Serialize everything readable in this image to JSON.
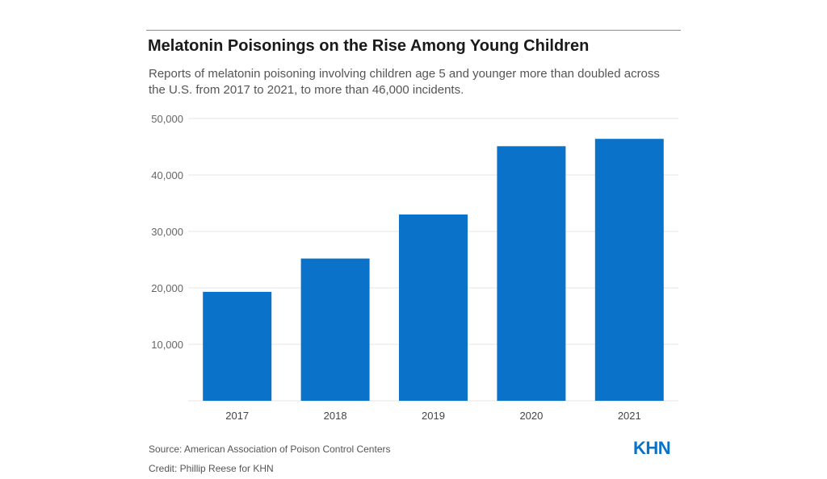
{
  "title": "Melatonin Poisonings on the Rise Among Young Children",
  "subtitle": "Reports of melatonin poisoning involving children age 5 and younger more than doubled across the U.S. from 2017 to 2021, to more than 46,000 incidents.",
  "source": "Source: American Association of Poison Control Centers",
  "credit": "Credit: Phillip Reese for KHN",
  "logo_text": "KHN",
  "colors": {
    "bar": "#0a72c8",
    "grid": "#e6e6e6",
    "axis_text": "#666666",
    "logo": "#0a72c8"
  },
  "chart_data": {
    "type": "bar",
    "categories": [
      "2017",
      "2018",
      "2019",
      "2020",
      "2021"
    ],
    "values": [
      19300,
      25200,
      33000,
      45100,
      46400
    ],
    "title": "",
    "xlabel": "",
    "ylabel": "",
    "ylim": [
      0,
      50000
    ],
    "yticks": [
      10000,
      20000,
      30000,
      40000,
      50000
    ],
    "ytick_labels": [
      "10,000",
      "20,000",
      "30,000",
      "40,000",
      "50,000"
    ],
    "grid": true,
    "legend": "none"
  }
}
